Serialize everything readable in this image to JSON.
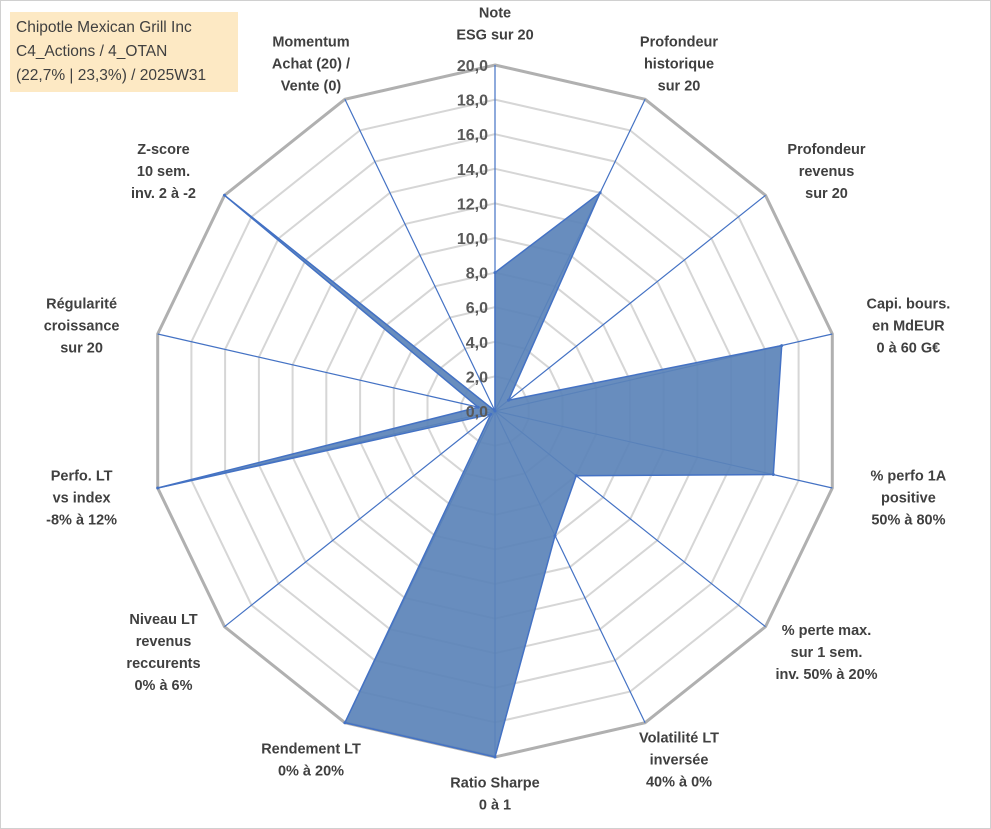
{
  "info": {
    "line1": "Chipotle Mexican Grill Inc",
    "line2": "C4_Actions / 4_OTAN",
    "line3": "(22,7% | 23,3%) / 2025W31"
  },
  "colors": {
    "fill": "#5b83b8",
    "stroke": "#4472c4",
    "grid_outer": "#b0b0b0",
    "grid_inner": "#d6d6d6",
    "text": "#404040"
  },
  "chart_data": {
    "type": "radar",
    "title": "",
    "rlim": [
      0,
      20
    ],
    "tick_labels": [
      "0,0",
      "2,0",
      "4,0",
      "6,0",
      "8,0",
      "10,0",
      "12,0",
      "14,0",
      "16,0",
      "18,0",
      "20,0"
    ],
    "grid": true,
    "axes": [
      {
        "label": [
          "Note",
          "ESG sur 20"
        ],
        "value": 8.0
      },
      {
        "label": [
          "Profondeur",
          "historique",
          "sur 20"
        ],
        "value": 14.0
      },
      {
        "label": [
          "Profondeur",
          "revenus",
          "sur 20"
        ],
        "value": 1.0
      },
      {
        "label": [
          "Capi. bours.",
          "en MdEUR",
          "0 à 60 G€"
        ],
        "value": 17.0
      },
      {
        "label": [
          "% perfo 1A",
          "positive",
          "50% à 80%"
        ],
        "value": 16.5
      },
      {
        "label": [
          "% perte max.",
          "sur 1 sem.",
          "inv. 50% à 20%"
        ],
        "value": 6.0
      },
      {
        "label": [
          "Volatilité LT",
          "inversée",
          "40% à 0%"
        ],
        "value": 8.0
      },
      {
        "label": [
          "Ratio Sharpe",
          "0 à 1"
        ],
        "value": 20.0
      },
      {
        "label": [
          "Rendement LT",
          "0% à 20%"
        ],
        "value": 20.0
      },
      {
        "label": [
          "Niveau LT",
          "revenus",
          "reccurents",
          "0% à 6%"
        ],
        "value": 0.3
      },
      {
        "label": [
          "Perfo. LT",
          "vs index",
          "-8% à 12%"
        ],
        "value": 20.0
      },
      {
        "label": [
          "Régularité",
          "croissance",
          "sur 20"
        ],
        "value": 1.0
      },
      {
        "label": [
          "Z-score",
          "10 sem.",
          "inv. 2 à -2"
        ],
        "value": 20.0
      },
      {
        "label": [
          "Momentum",
          "Achat (20) /",
          "Vente (0)"
        ],
        "value": 0.0
      }
    ]
  }
}
